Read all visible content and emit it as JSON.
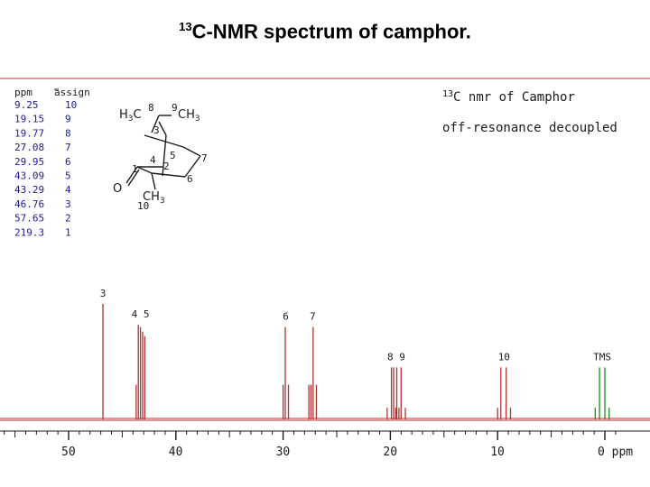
{
  "slide": {
    "title_sup": "13",
    "title_rest": "C-NMR spectrum of camphor."
  },
  "colors": {
    "spectrum": "#b03030",
    "tms": "#1a8a1a",
    "table_values": "#1a1aa0",
    "text": "#1a1a1a"
  },
  "chart_data": {
    "type": "line",
    "title_sup": "13",
    "title": "C nmr of Camphor",
    "subtitle": "off-resonance decoupled",
    "xlabel": "ppm",
    "xlim": [
      58,
      -1
    ],
    "x_reversed": true,
    "x_ticks": [
      50,
      40,
      30,
      20,
      10,
      0
    ],
    "x_tick_labels": [
      "50",
      "40",
      "30",
      "20",
      "10",
      "0 ppm"
    ],
    "grid": false,
    "assignment_table": {
      "headers": [
        "ppm",
        "assign"
      ],
      "rows": [
        [
          "9.25",
          "10"
        ],
        [
          "19.15",
          "9"
        ],
        [
          "19.77",
          "8"
        ],
        [
          "27.08",
          "7"
        ],
        [
          "29.95",
          "6"
        ],
        [
          "43.09",
          "5"
        ],
        [
          "43.29",
          "4"
        ],
        [
          "46.76",
          "3"
        ],
        [
          "57.65",
          "2"
        ],
        [
          "219.3",
          "1"
        ]
      ]
    },
    "molecule_labels": {
      "h3c_left": "H",
      "h3c_sub": "3",
      "h3c_c": "C",
      "h3c_num": "8",
      "ch3_right_num": "9",
      "ch3_right": "CH",
      "ch3_right_sub": "3",
      "c3": "3",
      "c4": "4",
      "c5": "5",
      "c7": "7",
      "c1": "1",
      "c2": "2",
      "c6": "6",
      "o": "O",
      "ch3_bottom": "CH",
      "ch3_bottom_sub": "3",
      "c10": "10"
    },
    "peak_groups": [
      {
        "label": "3",
        "lines": [
          {
            "ppm": 46.8,
            "h": 1.0
          }
        ]
      },
      {
        "label": "4 5",
        "lines": [
          {
            "ppm": 43.7,
            "h": 0.3
          },
          {
            "ppm": 43.5,
            "h": 0.82
          },
          {
            "ppm": 43.3,
            "h": 0.8
          },
          {
            "ppm": 43.1,
            "h": 0.76
          },
          {
            "ppm": 42.9,
            "h": 0.72
          }
        ]
      },
      {
        "label": "6",
        "lines": [
          {
            "ppm": 30.0,
            "h": 0.3
          },
          {
            "ppm": 29.8,
            "h": 0.8
          },
          {
            "ppm": 29.5,
            "h": 0.3
          }
        ]
      },
      {
        "label": "7",
        "lines": [
          {
            "ppm": 27.6,
            "h": 0.3
          },
          {
            "ppm": 27.4,
            "h": 0.3
          },
          {
            "ppm": 27.2,
            "h": 0.8
          },
          {
            "ppm": 26.9,
            "h": 0.3
          }
        ]
      },
      {
        "label": "8 9",
        "lines": [
          {
            "ppm": 20.3,
            "h": 0.1
          },
          {
            "ppm": 19.9,
            "h": 0.45
          },
          {
            "ppm": 19.7,
            "h": 0.45
          },
          {
            "ppm": 19.5,
            "h": 0.1
          },
          {
            "ppm": 19.4,
            "h": 0.45
          },
          {
            "ppm": 19.2,
            "h": 0.1
          },
          {
            "ppm": 19.0,
            "h": 0.45
          },
          {
            "ppm": 18.6,
            "h": 0.1
          }
        ]
      },
      {
        "label": "10",
        "lines": [
          {
            "ppm": 10.0,
            "h": 0.1
          },
          {
            "ppm": 9.7,
            "h": 0.45
          },
          {
            "ppm": 9.2,
            "h": 0.45
          },
          {
            "ppm": 8.8,
            "h": 0.1
          }
        ]
      }
    ],
    "tms": {
      "label": "TMS",
      "lines": [
        {
          "ppm": 0.9,
          "h": 0.1
        },
        {
          "ppm": 0.5,
          "h": 0.45
        },
        {
          "ppm": 0.0,
          "h": 0.45
        },
        {
          "ppm": -0.4,
          "h": 0.1
        }
      ]
    }
  }
}
